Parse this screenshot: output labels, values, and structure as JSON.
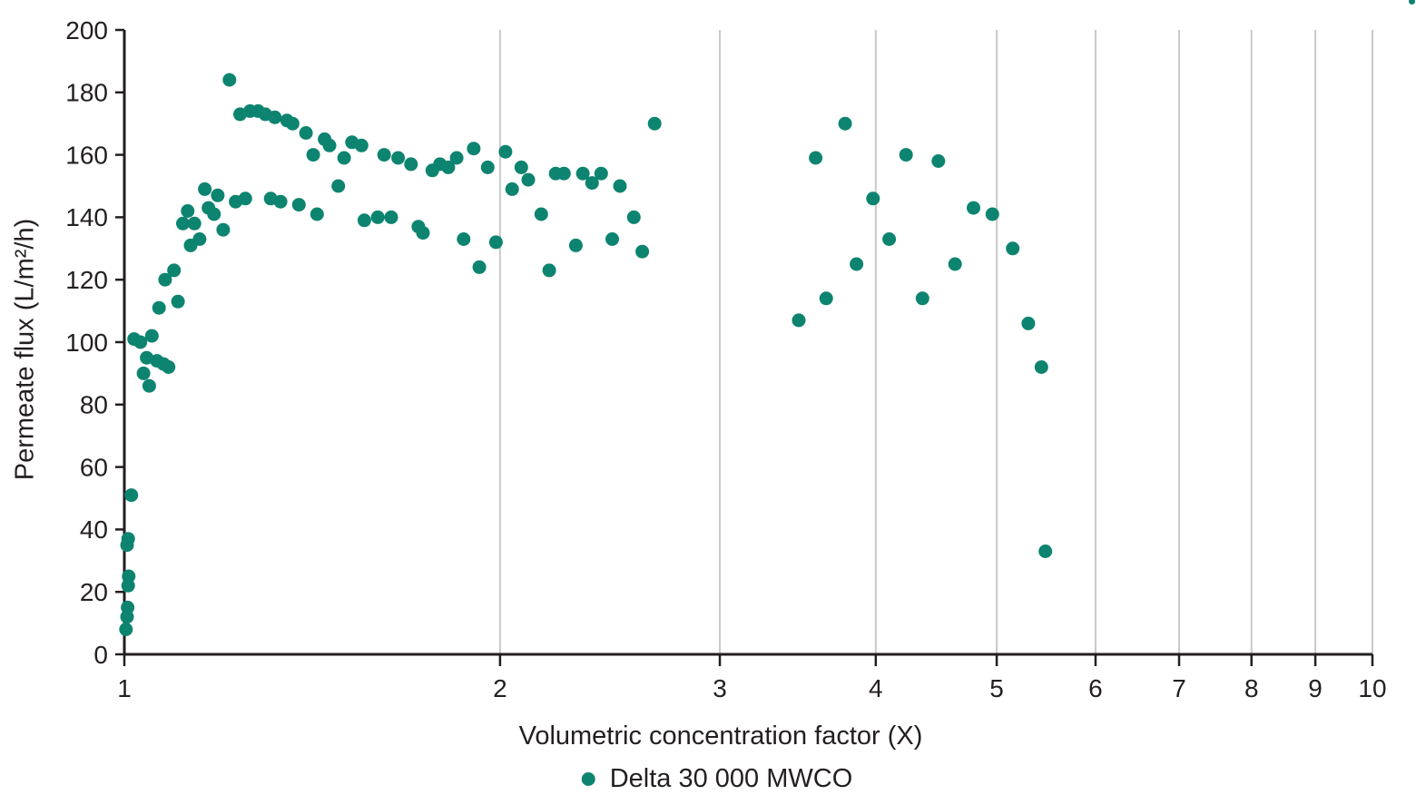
{
  "colors": {
    "accent": "#0d8470",
    "axis": "#231f20",
    "gridline": "#c9c9c9",
    "text": "#231f20",
    "background": "#ffffff"
  },
  "chart_data": {
    "type": "scatter",
    "title": "",
    "xlabel": "Volumetric concentration factor (X)",
    "ylabel": "Permeate flux (L/m²/h)",
    "x_scale": "log",
    "xlim": [
      1,
      10
    ],
    "ylim": [
      0,
      200
    ],
    "x_ticks": [
      1,
      2,
      3,
      4,
      5,
      6,
      7,
      8,
      9,
      10
    ],
    "y_ticks": [
      0,
      20,
      40,
      60,
      80,
      100,
      120,
      140,
      160,
      180,
      200
    ],
    "grid": "vertical-only",
    "legend": {
      "position": "bottom-center",
      "entries": [
        {
          "label": "Delta 30 000 MWCO",
          "color": "#0d8470",
          "marker": "circle"
        }
      ]
    },
    "series": [
      {
        "name": "Delta 30 000 MWCO",
        "color": "#0d8470",
        "marker": "circle",
        "points": [
          [
            1.003,
            8
          ],
          [
            1.005,
            12
          ],
          [
            1.006,
            15
          ],
          [
            1.007,
            22
          ],
          [
            1.008,
            25
          ],
          [
            1.005,
            35
          ],
          [
            1.007,
            37
          ],
          [
            1.013,
            51
          ],
          [
            1.018,
            101
          ],
          [
            1.03,
            100
          ],
          [
            1.052,
            102
          ],
          [
            1.042,
            95
          ],
          [
            1.062,
            94
          ],
          [
            1.075,
            93
          ],
          [
            1.085,
            92
          ],
          [
            1.036,
            90
          ],
          [
            1.047,
            86
          ],
          [
            1.066,
            111
          ],
          [
            1.104,
            113
          ],
          [
            1.078,
            120
          ],
          [
            1.096,
            123
          ],
          [
            1.114,
            138
          ],
          [
            1.124,
            142
          ],
          [
            1.138,
            138
          ],
          [
            1.13,
            131
          ],
          [
            1.149,
            133
          ],
          [
            1.16,
            149
          ],
          [
            1.188,
            147
          ],
          [
            1.168,
            143
          ],
          [
            1.18,
            141
          ],
          [
            1.2,
            136
          ],
          [
            1.228,
            145
          ],
          [
            1.25,
            146
          ],
          [
            1.31,
            146
          ],
          [
            1.334,
            145
          ],
          [
            1.38,
            144
          ],
          [
            1.214,
            184
          ],
          [
            1.238,
            173
          ],
          [
            1.261,
            174
          ],
          [
            1.28,
            174
          ],
          [
            1.297,
            173
          ],
          [
            1.32,
            172
          ],
          [
            1.35,
            171
          ],
          [
            1.364,
            170
          ],
          [
            1.398,
            167
          ],
          [
            1.417,
            160
          ],
          [
            1.447,
            165
          ],
          [
            1.46,
            163
          ],
          [
            1.5,
            159
          ],
          [
            1.522,
            164
          ],
          [
            1.549,
            163
          ],
          [
            1.615,
            160
          ],
          [
            1.657,
            159
          ],
          [
            1.697,
            157
          ],
          [
            1.765,
            155
          ],
          [
            1.79,
            157
          ],
          [
            1.818,
            156
          ],
          [
            1.846,
            159
          ],
          [
            1.905,
            162
          ],
          [
            1.955,
            156
          ],
          [
            2.02,
            161
          ],
          [
            2.045,
            149
          ],
          [
            2.08,
            156
          ],
          [
            2.107,
            152
          ],
          [
            2.216,
            154
          ],
          [
            2.25,
            154
          ],
          [
            2.33,
            154
          ],
          [
            2.37,
            151
          ],
          [
            2.41,
            154
          ],
          [
            2.495,
            150
          ],
          [
            2.66,
            170
          ],
          [
            1.427,
            141
          ],
          [
            1.484,
            150
          ],
          [
            1.557,
            139
          ],
          [
            1.596,
            140
          ],
          [
            1.636,
            140
          ],
          [
            1.72,
            137
          ],
          [
            1.735,
            135
          ],
          [
            1.87,
            133
          ],
          [
            1.925,
            124
          ],
          [
            1.985,
            132
          ],
          [
            2.158,
            141
          ],
          [
            2.19,
            123
          ],
          [
            2.3,
            131
          ],
          [
            2.46,
            133
          ],
          [
            2.56,
            140
          ],
          [
            2.6,
            129
          ],
          [
            3.47,
            107
          ],
          [
            3.58,
            159
          ],
          [
            3.65,
            114
          ],
          [
            3.78,
            170
          ],
          [
            3.86,
            125
          ],
          [
            3.98,
            146
          ],
          [
            4.1,
            133
          ],
          [
            4.23,
            160
          ],
          [
            4.36,
            114
          ],
          [
            4.49,
            158
          ],
          [
            4.63,
            125
          ],
          [
            4.79,
            143
          ],
          [
            4.96,
            141
          ],
          [
            5.15,
            130
          ],
          [
            5.3,
            106
          ],
          [
            5.43,
            92
          ],
          [
            5.47,
            33
          ]
        ]
      }
    ]
  }
}
